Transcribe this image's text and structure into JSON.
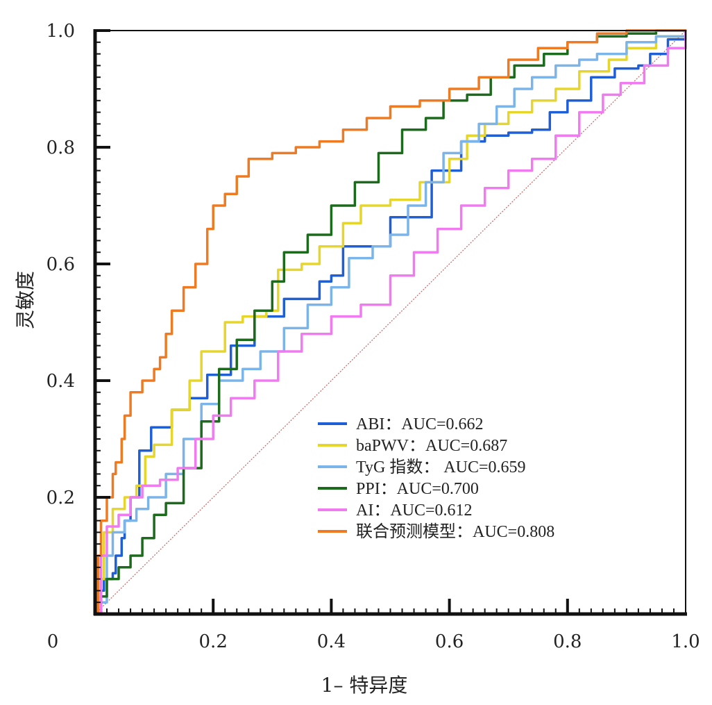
{
  "chart_data": {
    "type": "line",
    "xlabel": "1– 特异度",
    "ylabel": "灵敏度",
    "xlim": [
      0,
      1
    ],
    "ylim": [
      0,
      1
    ],
    "origin_label": "0",
    "x_ticks": [
      "0.2",
      "0.4",
      "0.6",
      "0.8",
      "1.0"
    ],
    "y_ticks": [
      "0.2",
      "0.4",
      "0.6",
      "0.8",
      "1.0"
    ],
    "legend_position": "bottom-center",
    "grid": false,
    "reference_line": {
      "from": [
        0,
        0
      ],
      "to": [
        1,
        1
      ],
      "color": "#c86464",
      "style": "dotted"
    },
    "series": [
      {
        "name": "ABI：AUC=0.662",
        "color": "#1f5fd6",
        "points": [
          [
            0,
            0
          ],
          [
            0.01,
            0.04
          ],
          [
            0.015,
            0.06
          ],
          [
            0.03,
            0.07
          ],
          [
            0.035,
            0.1
          ],
          [
            0.045,
            0.13
          ],
          [
            0.05,
            0.16
          ],
          [
            0.06,
            0.2
          ],
          [
            0.075,
            0.28
          ],
          [
            0.095,
            0.32
          ],
          [
            0.13,
            0.35
          ],
          [
            0.16,
            0.37
          ],
          [
            0.19,
            0.41
          ],
          [
            0.23,
            0.46
          ],
          [
            0.27,
            0.51
          ],
          [
            0.32,
            0.54
          ],
          [
            0.38,
            0.57
          ],
          [
            0.4,
            0.58
          ],
          [
            0.42,
            0.63
          ],
          [
            0.5,
            0.68
          ],
          [
            0.57,
            0.76
          ],
          [
            0.62,
            0.81
          ],
          [
            0.66,
            0.82
          ],
          [
            0.7,
            0.825
          ],
          [
            0.74,
            0.83
          ],
          [
            0.77,
            0.86
          ],
          [
            0.8,
            0.88
          ],
          [
            0.84,
            0.92
          ],
          [
            0.88,
            0.935
          ],
          [
            0.92,
            0.94
          ],
          [
            0.94,
            0.96
          ],
          [
            0.97,
            0.985
          ],
          [
            1,
            1
          ]
        ]
      },
      {
        "name": "baPWV：AUC=0.687",
        "color": "#e6d62c",
        "points": [
          [
            0,
            0
          ],
          [
            0.01,
            0.06
          ],
          [
            0.015,
            0.14
          ],
          [
            0.03,
            0.18
          ],
          [
            0.05,
            0.2
          ],
          [
            0.07,
            0.22
          ],
          [
            0.085,
            0.27
          ],
          [
            0.1,
            0.29
          ],
          [
            0.13,
            0.35
          ],
          [
            0.16,
            0.4
          ],
          [
            0.18,
            0.45
          ],
          [
            0.22,
            0.5
          ],
          [
            0.25,
            0.51
          ],
          [
            0.29,
            0.52
          ],
          [
            0.31,
            0.59
          ],
          [
            0.35,
            0.6
          ],
          [
            0.38,
            0.63
          ],
          [
            0.42,
            0.67
          ],
          [
            0.45,
            0.7
          ],
          [
            0.5,
            0.71
          ],
          [
            0.55,
            0.74
          ],
          [
            0.6,
            0.78
          ],
          [
            0.63,
            0.82
          ],
          [
            0.66,
            0.84
          ],
          [
            0.7,
            0.86
          ],
          [
            0.74,
            0.88
          ],
          [
            0.78,
            0.9
          ],
          [
            0.82,
            0.93
          ],
          [
            0.87,
            0.95
          ],
          [
            0.9,
            0.97
          ],
          [
            0.95,
            0.99
          ],
          [
            1,
            1
          ]
        ]
      },
      {
        "name": "TyG 指数： AUC=0.659",
        "color": "#7ab4e8",
        "points": [
          [
            0,
            0
          ],
          [
            0.01,
            0.02
          ],
          [
            0.02,
            0.1
          ],
          [
            0.03,
            0.14
          ],
          [
            0.05,
            0.16
          ],
          [
            0.07,
            0.18
          ],
          [
            0.09,
            0.2
          ],
          [
            0.12,
            0.24
          ],
          [
            0.15,
            0.3
          ],
          [
            0.18,
            0.36
          ],
          [
            0.21,
            0.4
          ],
          [
            0.25,
            0.42
          ],
          [
            0.28,
            0.45
          ],
          [
            0.32,
            0.49
          ],
          [
            0.36,
            0.53
          ],
          [
            0.4,
            0.56
          ],
          [
            0.43,
            0.61
          ],
          [
            0.47,
            0.63
          ],
          [
            0.5,
            0.65
          ],
          [
            0.53,
            0.7
          ],
          [
            0.56,
            0.74
          ],
          [
            0.59,
            0.79
          ],
          [
            0.62,
            0.81
          ],
          [
            0.65,
            0.84
          ],
          [
            0.68,
            0.87
          ],
          [
            0.71,
            0.9
          ],
          [
            0.74,
            0.92
          ],
          [
            0.78,
            0.94
          ],
          [
            0.82,
            0.95
          ],
          [
            0.85,
            0.96
          ],
          [
            0.9,
            0.98
          ],
          [
            0.95,
            0.99
          ],
          [
            1,
            1
          ]
        ]
      },
      {
        "name": "PPI：AUC=0.700",
        "color": "#1c6b1c",
        "points": [
          [
            0,
            0
          ],
          [
            0.01,
            0.03
          ],
          [
            0.02,
            0.06
          ],
          [
            0.04,
            0.08
          ],
          [
            0.06,
            0.1
          ],
          [
            0.08,
            0.13
          ],
          [
            0.1,
            0.17
          ],
          [
            0.12,
            0.19
          ],
          [
            0.15,
            0.25
          ],
          [
            0.18,
            0.33
          ],
          [
            0.21,
            0.42
          ],
          [
            0.24,
            0.47
          ],
          [
            0.27,
            0.52
          ],
          [
            0.3,
            0.57
          ],
          [
            0.32,
            0.62
          ],
          [
            0.36,
            0.65
          ],
          [
            0.4,
            0.7
          ],
          [
            0.44,
            0.74
          ],
          [
            0.48,
            0.79
          ],
          [
            0.52,
            0.83
          ],
          [
            0.56,
            0.85
          ],
          [
            0.59,
            0.88
          ],
          [
            0.63,
            0.89
          ],
          [
            0.67,
            0.92
          ],
          [
            0.71,
            0.94
          ],
          [
            0.76,
            0.96
          ],
          [
            0.8,
            0.98
          ],
          [
            0.85,
            0.99
          ],
          [
            0.9,
            0.995
          ],
          [
            0.95,
            1
          ],
          [
            1,
            1
          ]
        ]
      },
      {
        "name": "AI：AUC=0.612",
        "color": "#f07af0",
        "points": [
          [
            0,
            0
          ],
          [
            0.01,
            0.1
          ],
          [
            0.02,
            0.15
          ],
          [
            0.04,
            0.17
          ],
          [
            0.06,
            0.2
          ],
          [
            0.08,
            0.22
          ],
          [
            0.11,
            0.23
          ],
          [
            0.14,
            0.25
          ],
          [
            0.17,
            0.3
          ],
          [
            0.2,
            0.34
          ],
          [
            0.23,
            0.37
          ],
          [
            0.27,
            0.4
          ],
          [
            0.31,
            0.45
          ],
          [
            0.35,
            0.48
          ],
          [
            0.4,
            0.51
          ],
          [
            0.45,
            0.53
          ],
          [
            0.5,
            0.58
          ],
          [
            0.54,
            0.62
          ],
          [
            0.58,
            0.66
          ],
          [
            0.62,
            0.7
          ],
          [
            0.66,
            0.73
          ],
          [
            0.7,
            0.76
          ],
          [
            0.74,
            0.78
          ],
          [
            0.78,
            0.82
          ],
          [
            0.82,
            0.86
          ],
          [
            0.86,
            0.89
          ],
          [
            0.89,
            0.91
          ],
          [
            0.93,
            0.94
          ],
          [
            0.97,
            0.97
          ],
          [
            1,
            1
          ]
        ]
      },
      {
        "name": "联合预测模型：AUC=0.808",
        "color": "#ee7a22",
        "points": [
          [
            0,
            0
          ],
          [
            0.005,
            0.1
          ],
          [
            0.01,
            0.16
          ],
          [
            0.02,
            0.2
          ],
          [
            0.03,
            0.24
          ],
          [
            0.035,
            0.26
          ],
          [
            0.045,
            0.3
          ],
          [
            0.05,
            0.34
          ],
          [
            0.06,
            0.38
          ],
          [
            0.08,
            0.4
          ],
          [
            0.1,
            0.42
          ],
          [
            0.11,
            0.44
          ],
          [
            0.12,
            0.48
          ],
          [
            0.13,
            0.52
          ],
          [
            0.15,
            0.56
          ],
          [
            0.17,
            0.6
          ],
          [
            0.19,
            0.66
          ],
          [
            0.2,
            0.7
          ],
          [
            0.22,
            0.72
          ],
          [
            0.24,
            0.75
          ],
          [
            0.26,
            0.78
          ],
          [
            0.3,
            0.79
          ],
          [
            0.34,
            0.8
          ],
          [
            0.38,
            0.81
          ],
          [
            0.42,
            0.83
          ],
          [
            0.46,
            0.85
          ],
          [
            0.5,
            0.87
          ],
          [
            0.55,
            0.88
          ],
          [
            0.6,
            0.9
          ],
          [
            0.65,
            0.92
          ],
          [
            0.7,
            0.95
          ],
          [
            0.75,
            0.97
          ],
          [
            0.8,
            0.98
          ],
          [
            0.85,
            0.995
          ],
          [
            0.9,
            1
          ],
          [
            1,
            1
          ]
        ]
      }
    ]
  }
}
